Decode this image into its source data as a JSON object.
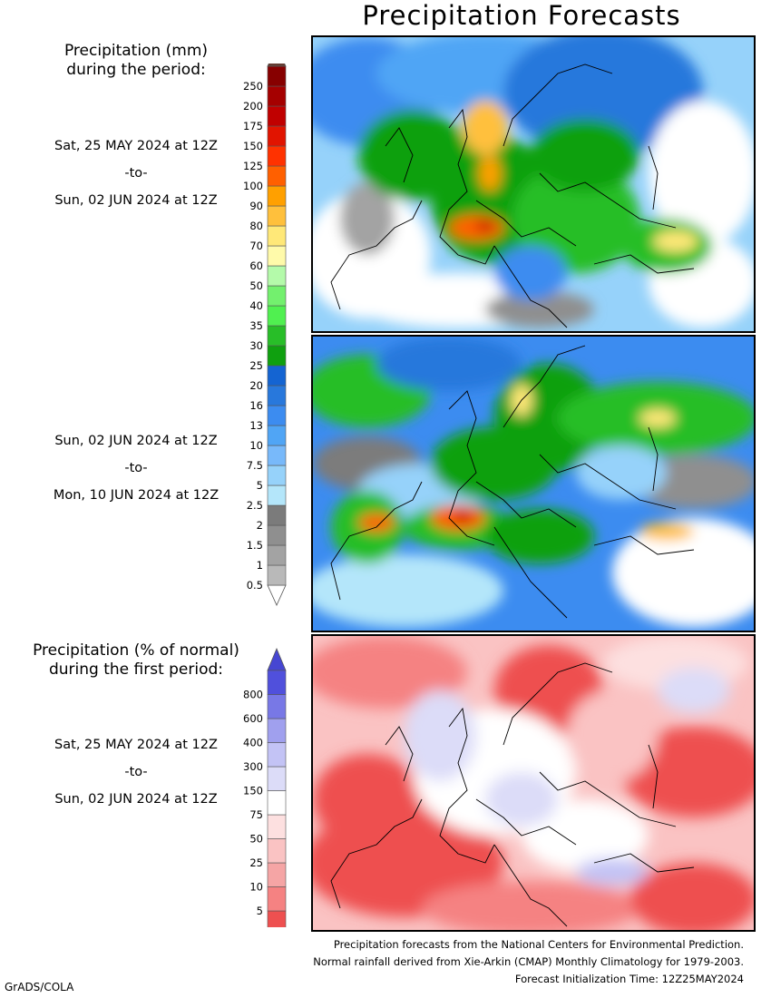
{
  "title": "Precipitation Forecasts",
  "legend_mm": {
    "heading": [
      "Precipitation (mm)",
      "during the period:"
    ],
    "levels": [
      "0.5",
      "1",
      "1.5",
      "2",
      "2.5",
      "5",
      "7.5",
      "10",
      "13",
      "16",
      "20",
      "25",
      "30",
      "35",
      "40",
      "50",
      "60",
      "70",
      "80",
      "90",
      "100",
      "125",
      "150",
      "175",
      "200",
      "250"
    ],
    "colors": [
      "#b9b9b9",
      "#a3a3a3",
      "#8f8f8f",
      "#7b7b7b",
      "#b4e6fa",
      "#96d2fa",
      "#78b9fa",
      "#50a5f5",
      "#3c8cf0",
      "#2878dc",
      "#1464d2",
      "#0fa00f",
      "#28be28",
      "#50f050",
      "#73f06e",
      "#b4faaa",
      "#fffaaa",
      "#ffe878",
      "#ffc03c",
      "#ffa000",
      "#ff6000",
      "#ff3200",
      "#e11400",
      "#c00000",
      "#a50000",
      "#870000"
    ],
    "top_color": "#643c32"
  },
  "legend_pct": {
    "heading": [
      "Precipitation (% of normal)",
      "during the first period:"
    ],
    "levels": [
      "5",
      "10",
      "25",
      "50",
      "75",
      "150",
      "300",
      "400",
      "600",
      "800"
    ],
    "colors": [
      "#ee5050",
      "#f58282",
      "#f5a5a5",
      "#fac3c3",
      "#fde0e0",
      "#ffffff",
      "#dcdcf8",
      "#c3c3f5",
      "#a0a0ee",
      "#7878e6",
      "#5050dc"
    ],
    "bottom_color": "#e63c3c",
    "top_color": "#4646d2"
  },
  "periods": [
    {
      "start": "Sat, 25 MAY 2024 at 12Z",
      "sep": "-to-",
      "end": "Sun, 02 JUN 2024 at 12Z"
    },
    {
      "start": "Sun, 02 JUN 2024 at 12Z",
      "sep": "-to-",
      "end": "Mon, 10 JUN 2024 at 12Z"
    },
    {
      "start": "Sat, 25 MAY 2024 at 12Z",
      "sep": "-to-",
      "end": "Sun, 02 JUN 2024 at 12Z"
    }
  ],
  "footer": [
    "Precipitation forecasts from the National Centers for Environmental Prediction.",
    "Normal rainfall derived from Xie-Arkin (CMAP) Monthly Climatology for 1979-2003.",
    "Forecast Initialization Time: 12Z25MAY2024"
  ],
  "credit": "GrADS/COLA"
}
